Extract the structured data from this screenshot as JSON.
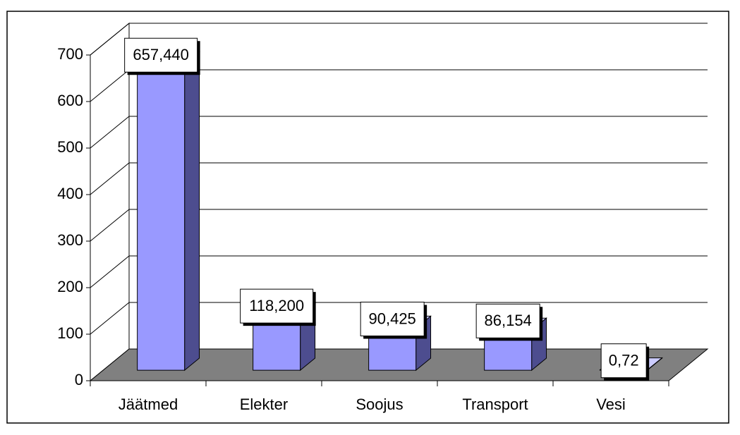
{
  "chart_data": {
    "type": "bar3d",
    "categories": [
      "Jäätmed",
      "Elekter",
      "Soojus",
      "Transport",
      "Vesi"
    ],
    "values": [
      657.44,
      118.2,
      90.425,
      86.154,
      0.72
    ],
    "value_labels": [
      "657,440",
      "118,200",
      "90,425",
      "86,154",
      "0,72"
    ],
    "color": "#9999ff",
    "ylim": [
      0,
      700
    ],
    "yticks": [
      0,
      100,
      200,
      300,
      400,
      500,
      600,
      700
    ],
    "grid": true
  }
}
